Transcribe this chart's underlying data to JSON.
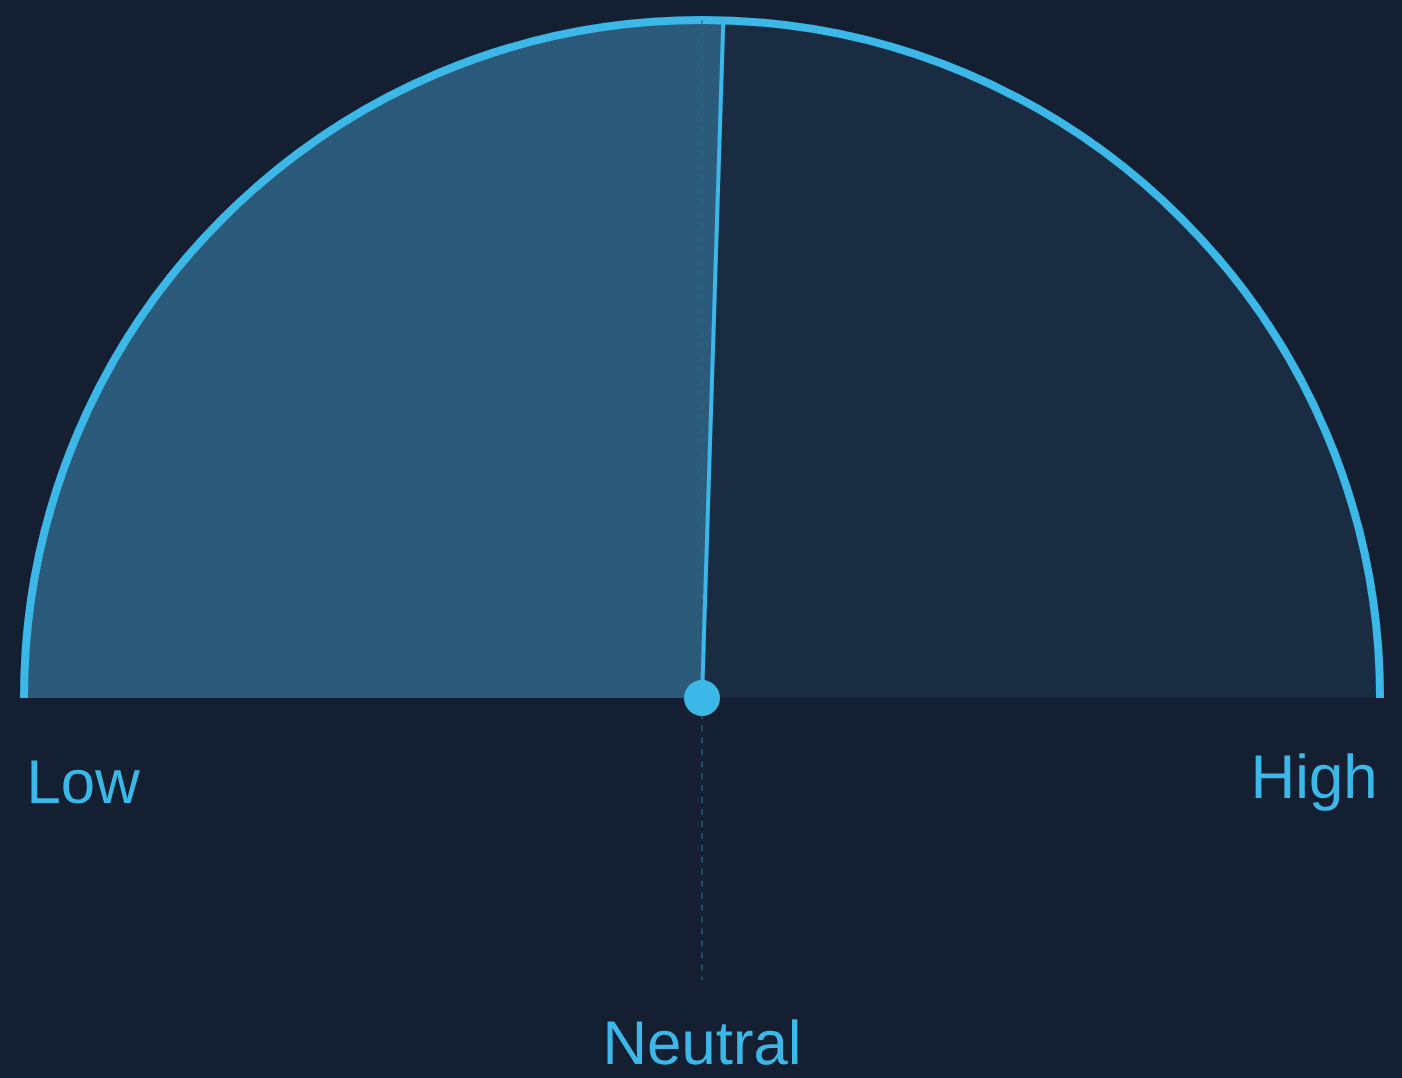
{
  "chart_data": {
    "type": "pie",
    "categories": [
      null,
      null
    ],
    "values": [
      51,
      49
    ],
    "colors": [
      "#2c5a7a",
      "#1a2c42"
    ],
    "annotations": [
      "Low",
      "High",
      "Neutral"
    ]
  }
}
